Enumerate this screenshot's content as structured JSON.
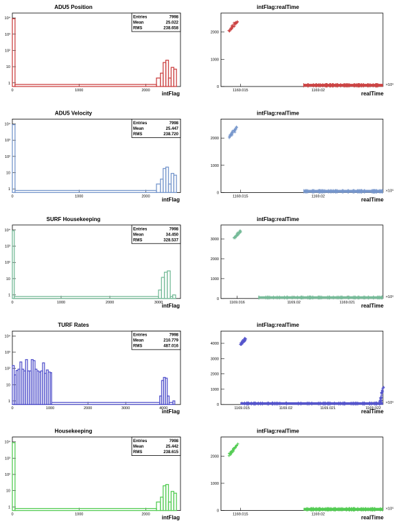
{
  "chart_data": [
    {
      "type": "bar",
      "title": "ADU5 Position",
      "xlabel": "intFlag",
      "color": "#cc4444",
      "xlim": [
        0,
        2520
      ],
      "logy": true,
      "ylim": [
        0.6,
        20000
      ],
      "xticks": [
        "0",
        "1000",
        "2000"
      ],
      "yticks": [
        "1",
        "10",
        "10²",
        "10³",
        "10⁴"
      ],
      "stats": {
        "labels": [
          "Entries",
          "Mean",
          "RMS"
        ],
        "values": [
          "7998",
          "25.022",
          "238.658"
        ]
      },
      "bins": [
        [
          0,
          40,
          9000
        ],
        [
          40,
          2160,
          0.8
        ],
        [
          2160,
          2220,
          2
        ],
        [
          2220,
          2260,
          4
        ],
        [
          2260,
          2300,
          18
        ],
        [
          2300,
          2340,
          25
        ],
        [
          2340,
          2380,
          2
        ],
        [
          2380,
          2420,
          9
        ],
        [
          2420,
          2460,
          7
        ]
      ]
    },
    {
      "type": "scatter",
      "title": "intFlag:realTime",
      "xlabel": "realTime",
      "color": "#cc4444",
      "xlim": [
        0,
        1
      ],
      "ylim": [
        0,
        2700
      ],
      "yticks": [
        0,
        1000,
        2000
      ],
      "xtick_labels": [
        {
          "label": "1169.015",
          "x": 0.12
        },
        {
          "label": "1169.02",
          "x": 0.6
        }
      ],
      "exponent": "×10⁶",
      "clusters": [
        {
          "x": [
            0.05,
            0.1
          ],
          "y": [
            2050,
            2400
          ]
        }
      ],
      "band": {
        "x": [
          0.51,
          1.0
        ],
        "y": [
          5,
          60
        ]
      }
    },
    {
      "type": "bar",
      "title": "ADU5 Velocity",
      "xlabel": "intFlag",
      "color": "#7797cc",
      "xlim": [
        0,
        2520
      ],
      "logy": true,
      "ylim": [
        0.6,
        20000
      ],
      "xticks": [
        "0",
        "1000",
        "2000"
      ],
      "yticks": [
        "1",
        "10",
        "10²",
        "10³",
        "10⁴"
      ],
      "stats": {
        "labels": [
          "Entries",
          "Mean",
          "RMS"
        ],
        "values": [
          "7998",
          "25.447",
          "238.720"
        ]
      },
      "bins": [
        [
          0,
          40,
          9000
        ],
        [
          40,
          2160,
          0.8
        ],
        [
          2160,
          2220,
          2
        ],
        [
          2220,
          2260,
          4
        ],
        [
          2260,
          2300,
          18
        ],
        [
          2300,
          2340,
          22
        ],
        [
          2340,
          2380,
          2
        ],
        [
          2380,
          2420,
          9
        ],
        [
          2420,
          2460,
          7
        ]
      ]
    },
    {
      "type": "scatter",
      "title": "intFlag:realTime",
      "xlabel": "realTime",
      "color": "#7797cc",
      "xlim": [
        0,
        1
      ],
      "ylim": [
        0,
        2700
      ],
      "yticks": [
        0,
        1000,
        2000
      ],
      "xtick_labels": [
        {
          "label": "1169.015",
          "x": 0.12
        },
        {
          "label": "1169.02",
          "x": 0.6
        }
      ],
      "exponent": "×10⁶",
      "clusters": [
        {
          "x": [
            0.05,
            0.1
          ],
          "y": [
            2050,
            2400
          ]
        }
      ],
      "band": {
        "x": [
          0.51,
          1.0
        ],
        "y": [
          5,
          60
        ]
      }
    },
    {
      "type": "bar",
      "title": "SURF Housekeeping",
      "xlabel": "intFlag",
      "color": "#77bb99",
      "xlim": [
        0,
        3450
      ],
      "logy": true,
      "ylim": [
        0.6,
        20000
      ],
      "xticks": [
        "0",
        "1000",
        "2000",
        "3000"
      ],
      "yticks": [
        "1",
        "10",
        "10²",
        "10³",
        "10⁴"
      ],
      "stats": {
        "labels": [
          "Entries",
          "Mean",
          "RMS"
        ],
        "values": [
          "7998",
          "34.450",
          "328.537"
        ]
      },
      "bins": [
        [
          0,
          40,
          9000
        ],
        [
          40,
          3000,
          0.8
        ],
        [
          3000,
          3060,
          2
        ],
        [
          3060,
          3120,
          12
        ],
        [
          3120,
          3180,
          25
        ],
        [
          3180,
          3240,
          30
        ],
        [
          3240,
          3290,
          0.8
        ],
        [
          3290,
          3350,
          1
        ]
      ]
    },
    {
      "type": "scatter",
      "title": "intFlag:realTime",
      "xlabel": "realTime",
      "color": "#77bb99",
      "xlim": [
        0,
        1
      ],
      "ylim": [
        0,
        3700
      ],
      "yticks": [
        0,
        1000,
        2000,
        3000
      ],
      "xtick_labels": [
        {
          "label": "1169.016",
          "x": 0.1
        },
        {
          "label": "1169.02",
          "x": 0.45
        },
        {
          "label": "1169.021",
          "x": 0.78
        }
      ],
      "exponent": "×10⁶",
      "clusters": [
        {
          "x": [
            0.08,
            0.12
          ],
          "y": [
            3050,
            3400
          ]
        }
      ],
      "band": {
        "x": [
          0.23,
          1.0
        ],
        "y": [
          5,
          60
        ]
      }
    },
    {
      "type": "bar",
      "title": "TURF Rates",
      "xlabel": "intFlag",
      "color": "#5555cc",
      "xlim": [
        0,
        4450
      ],
      "logy": true,
      "ylim": [
        0.6,
        20000
      ],
      "xticks": [
        "0",
        "1000",
        "2000",
        "3000",
        "4000"
      ],
      "yticks": [
        "1",
        "10",
        "10²",
        "10³",
        "10⁴"
      ],
      "stats": {
        "labels": [
          "Entries",
          "Mean",
          "RMS"
        ],
        "values": [
          "7998",
          "210.779",
          "487.016"
        ]
      },
      "bins": [
        [
          0,
          50,
          150
        ],
        [
          50,
          100,
          40
        ],
        [
          100,
          150,
          75
        ],
        [
          150,
          200,
          90
        ],
        [
          200,
          250,
          250
        ],
        [
          250,
          300,
          90
        ],
        [
          300,
          350,
          70
        ],
        [
          350,
          400,
          350
        ],
        [
          400,
          450,
          70
        ],
        [
          450,
          500,
          70
        ],
        [
          500,
          550,
          350
        ],
        [
          550,
          600,
          300
        ],
        [
          600,
          650,
          90
        ],
        [
          650,
          700,
          70
        ],
        [
          700,
          750,
          60
        ],
        [
          750,
          800,
          70
        ],
        [
          800,
          850,
          220
        ],
        [
          850,
          900,
          50
        ],
        [
          900,
          950,
          80
        ],
        [
          950,
          1000,
          60
        ],
        [
          1000,
          1040,
          55
        ],
        [
          1040,
          3900,
          0.8
        ],
        [
          3900,
          3950,
          2
        ],
        [
          3950,
          4000,
          18
        ],
        [
          4000,
          4050,
          28
        ],
        [
          4050,
          4100,
          25
        ],
        [
          4100,
          4150,
          2
        ],
        [
          4150,
          4250,
          0.8
        ],
        [
          4250,
          4300,
          1
        ]
      ]
    },
    {
      "type": "scatter",
      "title": "intFlag:realTime",
      "xlabel": "realTime",
      "color": "#5555cc",
      "xlim": [
        0,
        1
      ],
      "ylim": [
        0,
        4800
      ],
      "yticks": [
        0,
        1000,
        2000,
        3000,
        4000
      ],
      "xtick_labels": [
        {
          "label": "1169.015",
          "x": 0.13
        },
        {
          "label": "1169.02",
          "x": 0.4
        },
        {
          "label": "1169.021",
          "x": 0.66
        },
        {
          "label": "1169.022",
          "x": 0.94
        }
      ],
      "exponent": "×10⁶",
      "clusters": [
        {
          "x": [
            0.12,
            0.15
          ],
          "y": [
            3900,
            4300
          ]
        },
        {
          "x": [
            0.98,
            1.0
          ],
          "y": [
            20,
            1100
          ]
        }
      ],
      "band": {
        "x": [
          0.12,
          1.0
        ],
        "y": [
          5,
          80
        ]
      }
    },
    {
      "type": "bar",
      "title": "Housekeeping",
      "xlabel": "intFlag",
      "color": "#55cc55",
      "xlim": [
        0,
        2520
      ],
      "logy": true,
      "ylim": [
        0.6,
        20000
      ],
      "xticks": [
        "0",
        "1000",
        "2000"
      ],
      "yticks": [
        "1",
        "10",
        "10²",
        "10³",
        "10⁴"
      ],
      "stats": {
        "labels": [
          "Entries",
          "Mean",
          "RMS"
        ],
        "values": [
          "7998",
          "25.442",
          "238.615"
        ]
      },
      "bins": [
        [
          0,
          40,
          9000
        ],
        [
          40,
          2160,
          0.8
        ],
        [
          2160,
          2220,
          2
        ],
        [
          2220,
          2260,
          4
        ],
        [
          2260,
          2300,
          20
        ],
        [
          2300,
          2340,
          24
        ],
        [
          2340,
          2380,
          2
        ],
        [
          2380,
          2420,
          9
        ],
        [
          2420,
          2460,
          7
        ]
      ]
    },
    {
      "type": "scatter",
      "title": "intFlag:realTime",
      "xlabel": "realTime",
      "color": "#55cc55",
      "xlim": [
        0,
        1
      ],
      "ylim": [
        0,
        2700
      ],
      "yticks": [
        0,
        1000,
        2000
      ],
      "xtick_labels": [
        {
          "label": "1169.015",
          "x": 0.12
        },
        {
          "label": "1169.02",
          "x": 0.6
        }
      ],
      "exponent": "×10⁶",
      "clusters": [
        {
          "x": [
            0.05,
            0.1
          ],
          "y": [
            2050,
            2400
          ]
        }
      ],
      "band": {
        "x": [
          0.51,
          1.0
        ],
        "y": [
          5,
          60
        ]
      }
    }
  ]
}
